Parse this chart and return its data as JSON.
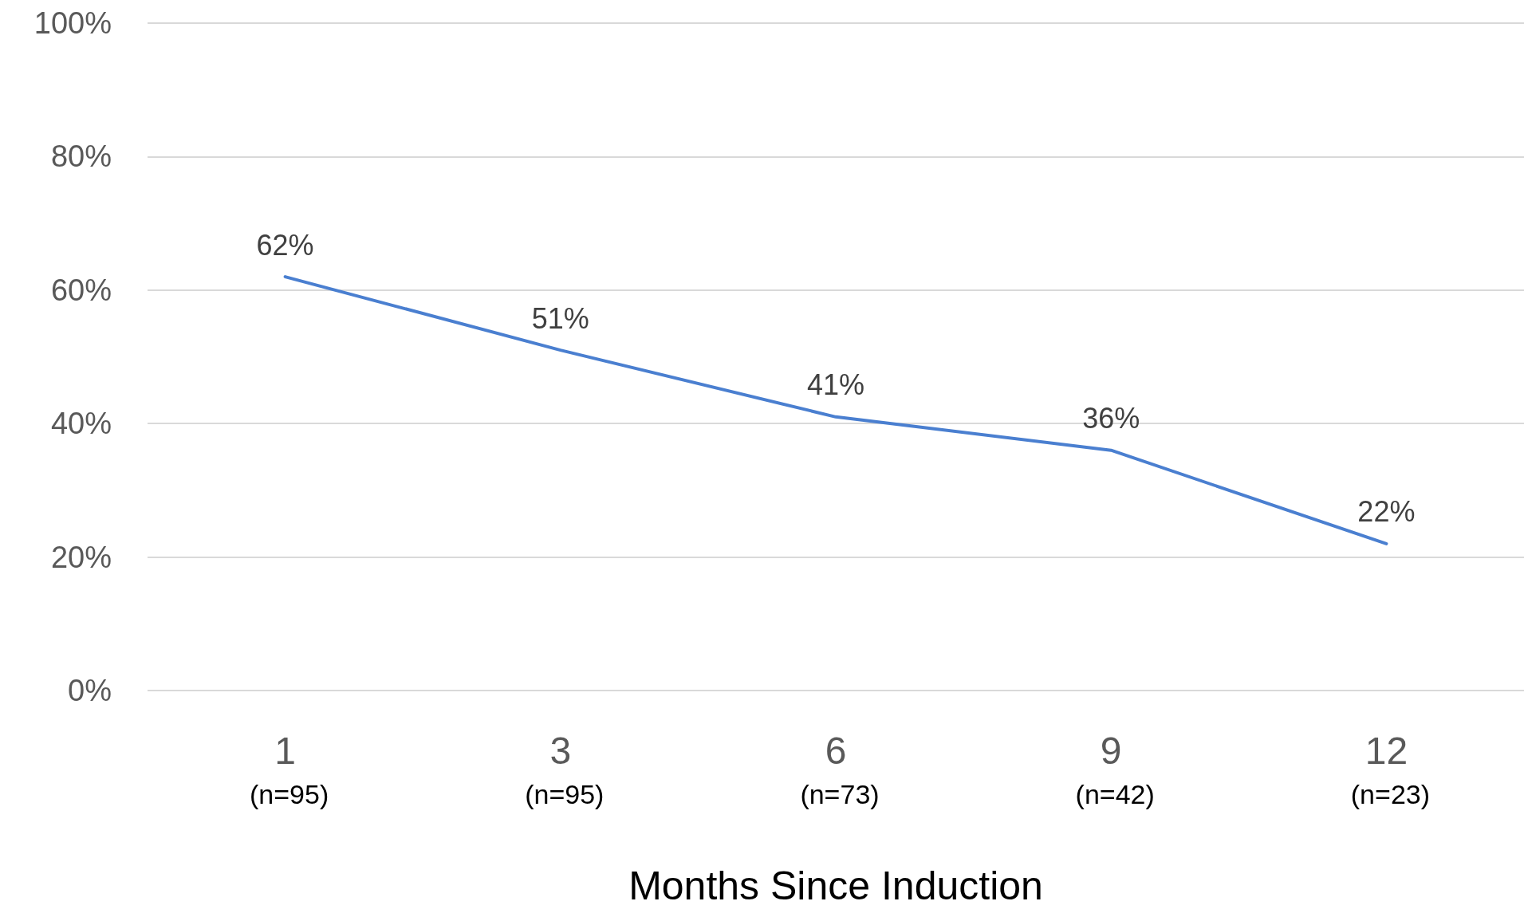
{
  "chart_data": {
    "type": "line",
    "xlabel": "Months Since Induction",
    "categories": [
      "1\n(n=95)",
      "3\n(n=95)",
      "6\n(n=73)",
      "9\n(n=42)",
      "12\n(n=23)"
    ],
    "series": [
      {
        "color": "#4a7fd0",
        "values": [
          62,
          51,
          41,
          36,
          22
        ],
        "value_labels": [
          "62%",
          "51%",
          "41%",
          "36%",
          "22%"
        ]
      }
    ],
    "ylim": [
      0,
      100
    ],
    "yticks": [
      {
        "value": 0,
        "label": "0%"
      },
      {
        "value": 20,
        "label": "20%"
      },
      {
        "value": 40,
        "label": "40%"
      },
      {
        "value": 60,
        "label": "60%"
      },
      {
        "value": 80,
        "label": "80%"
      },
      {
        "value": 100,
        "label": "100%"
      }
    ],
    "grid": "y",
    "marker": "none",
    "line_style": "solid"
  }
}
